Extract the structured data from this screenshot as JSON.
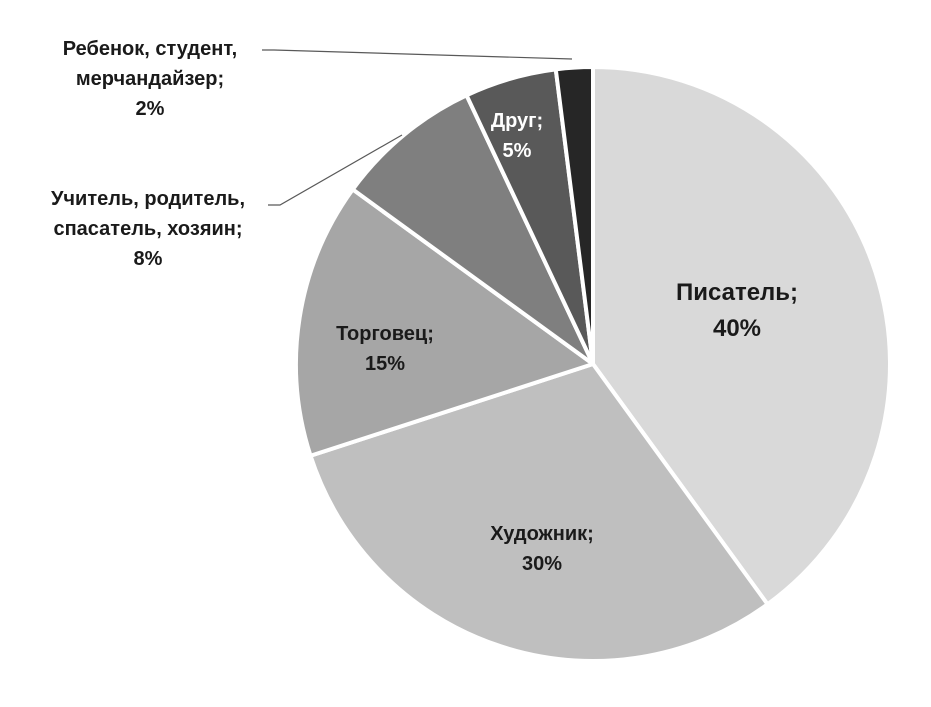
{
  "chart_data": {
    "type": "pie",
    "title": "",
    "start_angle_deg": 0,
    "direction": "clockwise",
    "slices": [
      {
        "label_lines": [
          "Писатель;",
          "40%"
        ],
        "category": "Писатель",
        "value": 40,
        "color": "#d9d9d9",
        "label_color": "#1a1a1a"
      },
      {
        "label_lines": [
          "Художник;",
          "30%"
        ],
        "category": "Художник",
        "value": 30,
        "color": "#bfbfbf",
        "label_color": "#1a1a1a"
      },
      {
        "label_lines": [
          "Торговец;",
          "15%"
        ],
        "category": "Торговец",
        "value": 15,
        "color": "#a6a6a6",
        "label_color": "#1a1a1a"
      },
      {
        "label_lines": [
          "Учитель, родитель,",
          "спасатель, хозяин;",
          "8%"
        ],
        "category": "Учитель, родитель, спасатель, хозяин",
        "value": 8,
        "color": "#7f7f7f",
        "label_color": "#1a1a1a"
      },
      {
        "label_lines": [
          "Друг;",
          "5%"
        ],
        "category": "Друг",
        "value": 5,
        "color": "#595959",
        "label_color": "#ffffff"
      },
      {
        "label_lines": [
          "Ребенок, студент,",
          "мерчандайзер;",
          "2%"
        ],
        "category": "Ребенок, студент, мерчандайзер",
        "value": 2,
        "color": "#262626",
        "label_color": "#1a1a1a"
      }
    ]
  }
}
